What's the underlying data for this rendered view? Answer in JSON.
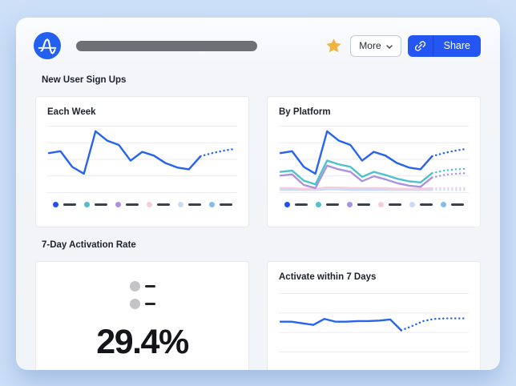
{
  "header": {
    "logo": {
      "icon": "amplitude-logo",
      "color": "#2360f0"
    },
    "title_placeholder_color": "#6d7075",
    "favorite": {
      "icon": "star-icon",
      "color": "#f0b43f"
    },
    "more_button": {
      "label": "More",
      "chevron_icon": "chevron-down-icon"
    },
    "share_button": {
      "label": "Share",
      "icon": "link-icon",
      "color": "#2356f3"
    }
  },
  "sections": [
    {
      "heading": "New User Sign Ups"
    },
    {
      "heading": "7-Day Activation Rate"
    }
  ],
  "cards": {
    "each_week": {
      "title": "Each Week"
    },
    "by_platform": {
      "title": "By Platform"
    },
    "activation_stat": {
      "value": "29.4%"
    },
    "activate_within": {
      "title": "Activate within 7 Days"
    }
  },
  "legend": {
    "type": "placeholder-dashes",
    "colors": [
      "#2050f0",
      "#4fc1cb",
      "#ab92e0",
      "#f5cedd",
      "#c6ddf8",
      "#85bcec"
    ],
    "dash_color": "#3a404c"
  },
  "chart_data": [
    {
      "id": "each-week",
      "type": "line",
      "title": "Each Week",
      "axis_labels": "none",
      "gridlines": 5,
      "forecast_style": "dotted",
      "series": [
        {
          "name": "new-user-sign-ups",
          "color": "#2563f0",
          "values": [
            60,
            63,
            38,
            27,
            95,
            80,
            73,
            48,
            62,
            56,
            44,
            37,
            34,
            55
          ],
          "forecast": [
            60,
            64,
            67
          ]
        }
      ]
    },
    {
      "id": "by-platform",
      "type": "line",
      "title": "By Platform",
      "axis_labels": "none",
      "gridlines": 5,
      "forecast_style": "dotted",
      "series": [
        {
          "name": "platform-5",
          "color": "#c6ddf8",
          "values": [
            1,
            1,
            1,
            1,
            2,
            2,
            1,
            1,
            1,
            1,
            1,
            1,
            1,
            1
          ],
          "forecast": [
            1,
            1,
            1
          ]
        },
        {
          "name": "platform-4",
          "color": "#f5cedd",
          "values": [
            4,
            4,
            3,
            3,
            5,
            5,
            4,
            4,
            4,
            4,
            3,
            3,
            3,
            4
          ],
          "forecast": [
            4,
            4,
            4
          ]
        },
        {
          "name": "platform-3",
          "color": "#ab92e0",
          "values": [
            24,
            26,
            9,
            4,
            40,
            34,
            30,
            15,
            23,
            18,
            12,
            8,
            6,
            21
          ],
          "forecast": [
            25,
            27,
            28
          ]
        },
        {
          "name": "platform-2",
          "color": "#4fc1cb",
          "values": [
            30,
            32,
            16,
            10,
            48,
            42,
            38,
            22,
            30,
            25,
            19,
            15,
            13,
            28
          ],
          "forecast": [
            32,
            34,
            35
          ]
        },
        {
          "name": "platform-1",
          "color": "#2563f0",
          "values": [
            60,
            63,
            38,
            27,
            95,
            80,
            73,
            48,
            62,
            56,
            44,
            37,
            34,
            55
          ],
          "forecast": [
            60,
            64,
            67
          ]
        }
      ]
    },
    {
      "id": "activate-7days",
      "type": "line",
      "title": "Activate within 7 Days",
      "axis_labels": "none",
      "gridlines": 4,
      "forecast_style": "dotted",
      "series": [
        {
          "name": "activation-rate",
          "color": "#2563f0",
          "values": [
            52,
            52,
            49,
            46,
            57,
            52,
            52,
            53,
            53,
            54,
            56,
            36
          ],
          "forecast": [
            44,
            53,
            57,
            58,
            58,
            58
          ]
        }
      ]
    }
  ]
}
